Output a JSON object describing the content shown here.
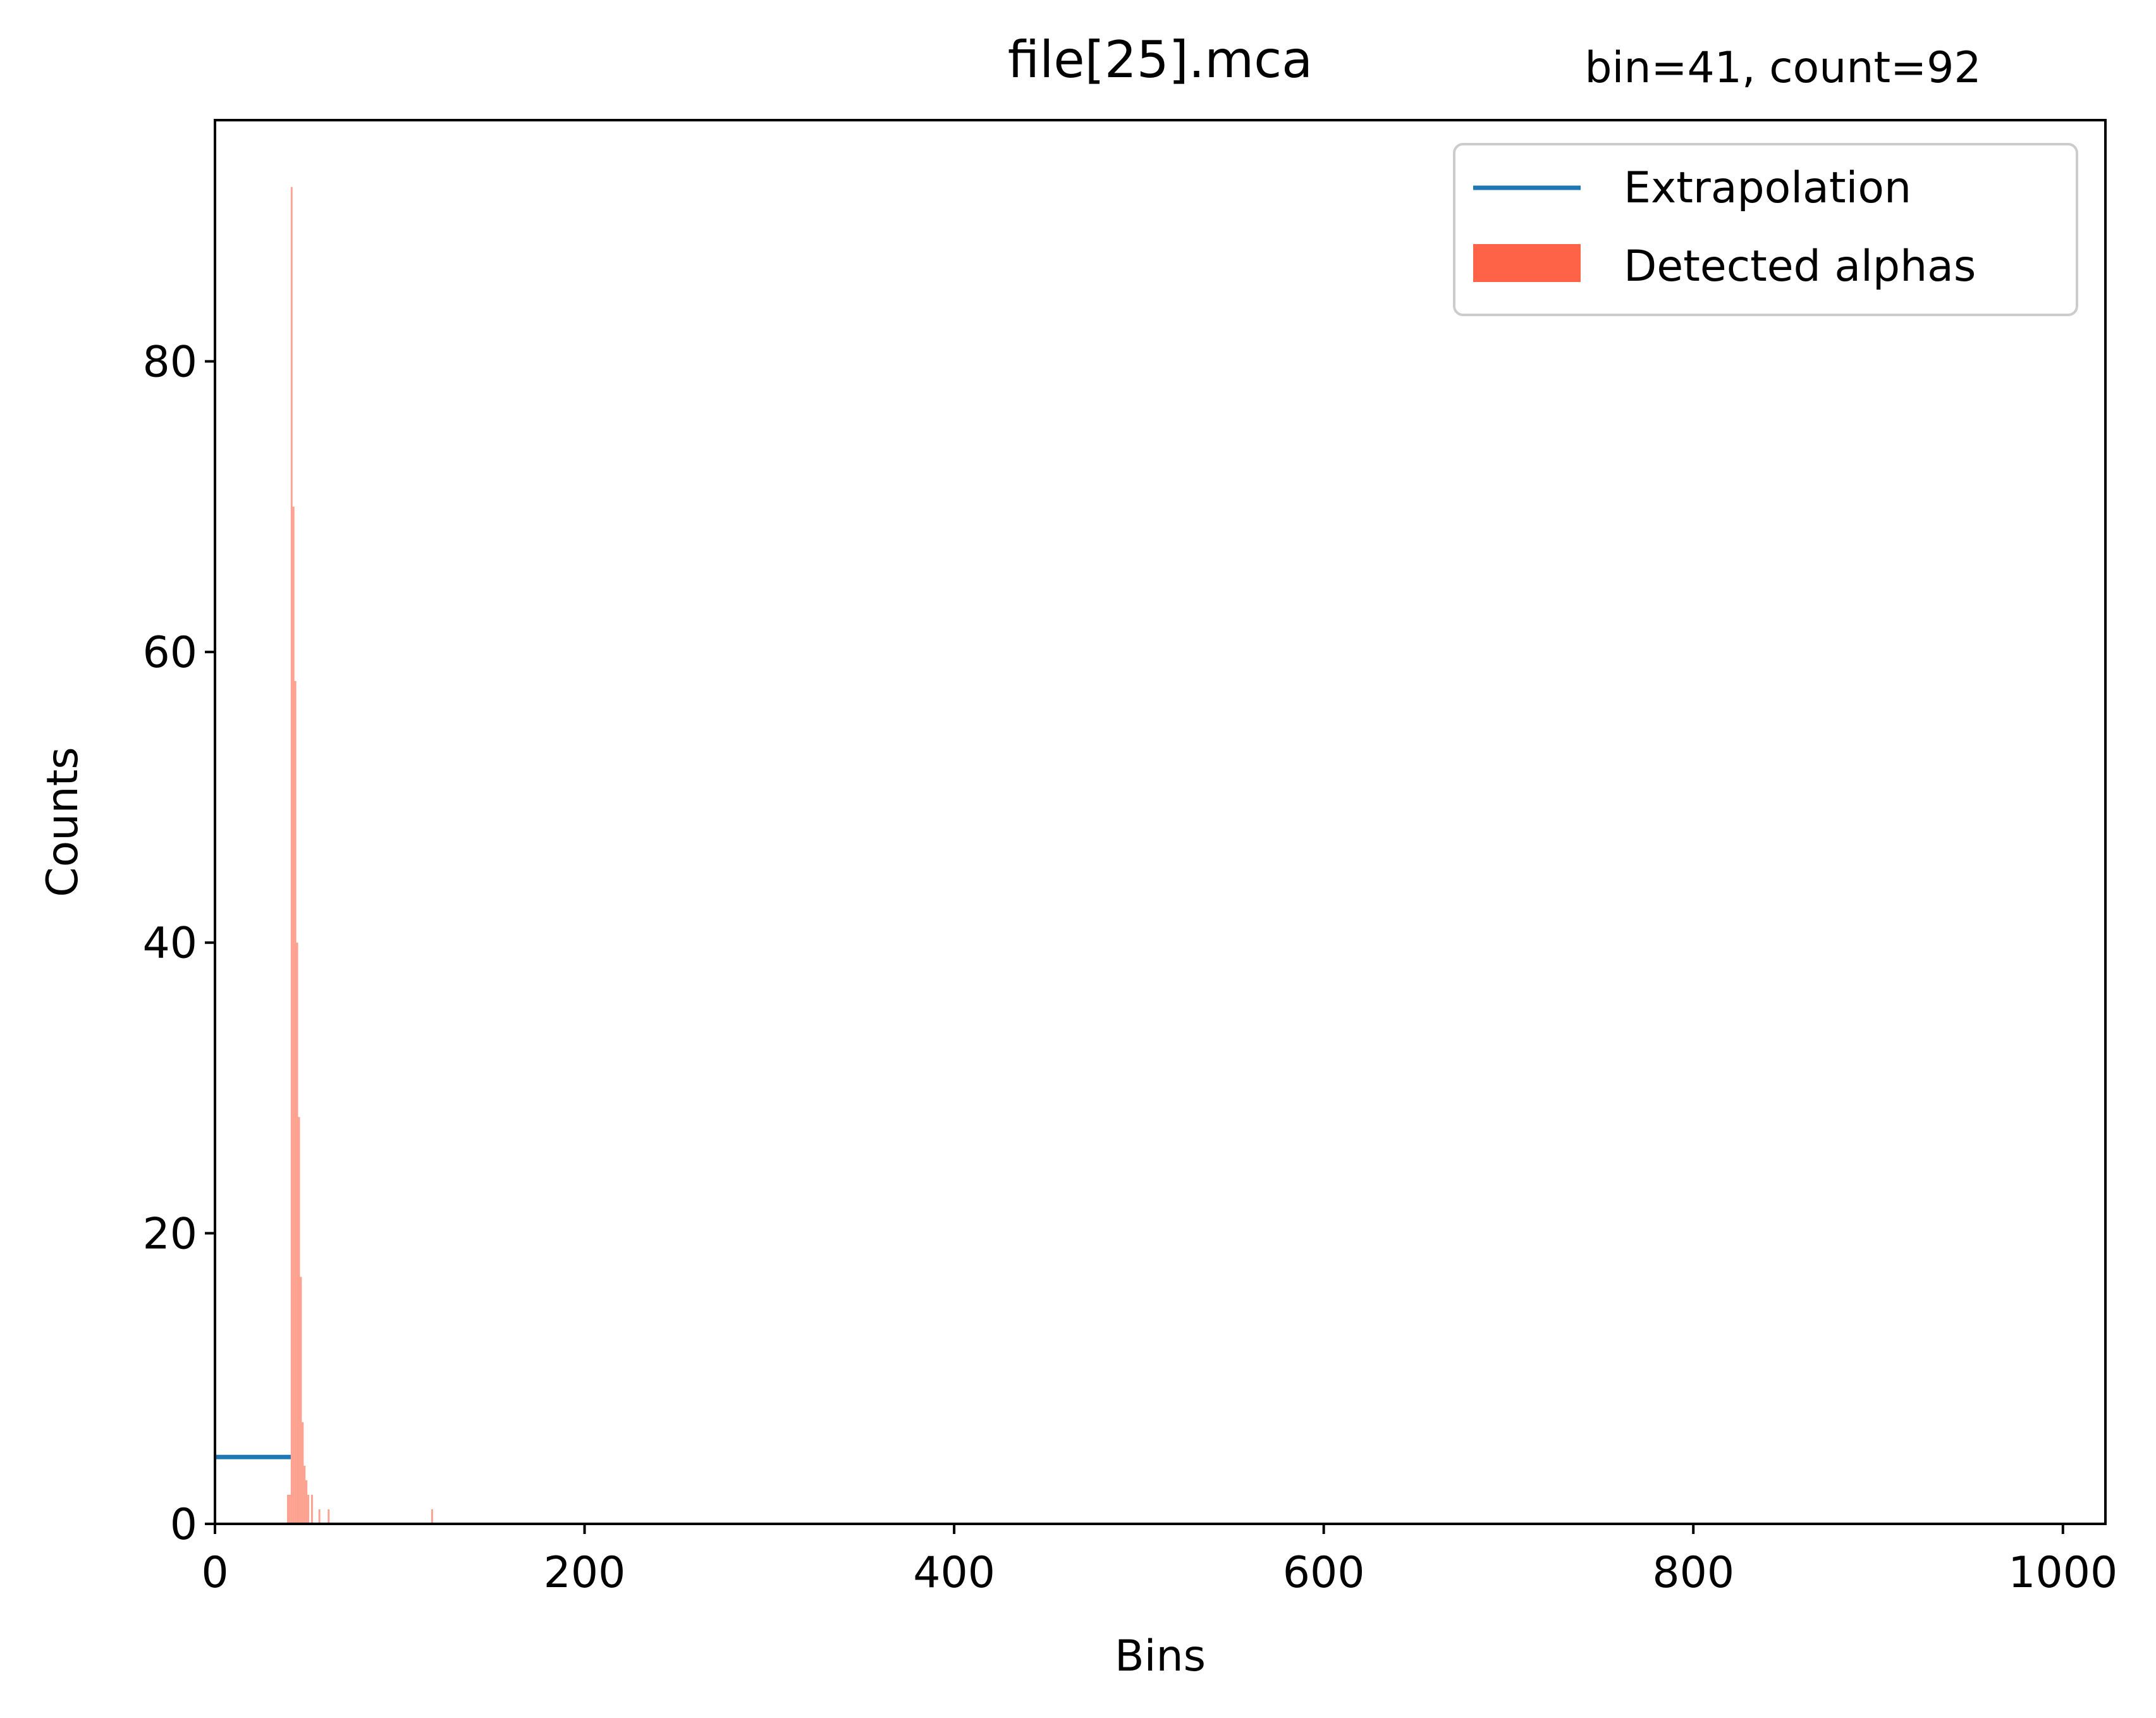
{
  "chart_data": {
    "type": "bar",
    "title": "file[25].mca",
    "annotation": "bin=41, count=92",
    "xlabel": "Bins",
    "ylabel": "Counts",
    "xlim": [
      0,
      1023
    ],
    "ylim": [
      0,
      96.6
    ],
    "xticks": [
      0,
      200,
      400,
      600,
      800,
      1000
    ],
    "yticks": [
      0,
      20,
      40,
      60,
      80
    ],
    "legend_position": "top-right",
    "series": [
      {
        "name": "Extrapolation",
        "type": "line",
        "color": "#1f77b4",
        "x": [
          0,
          41
        ],
        "y": [
          4.6,
          4.6
        ]
      },
      {
        "name": "Detected alphas",
        "type": "bar",
        "color": "#ff6347",
        "bins": [
          39,
          40,
          41,
          42,
          43,
          44,
          45,
          46,
          47,
          48,
          49,
          50,
          52,
          56,
          61,
          117
        ],
        "values": [
          2,
          2,
          92,
          70,
          58,
          40,
          28,
          17,
          7,
          4,
          3,
          2,
          2,
          1,
          1,
          1
        ]
      }
    ]
  }
}
